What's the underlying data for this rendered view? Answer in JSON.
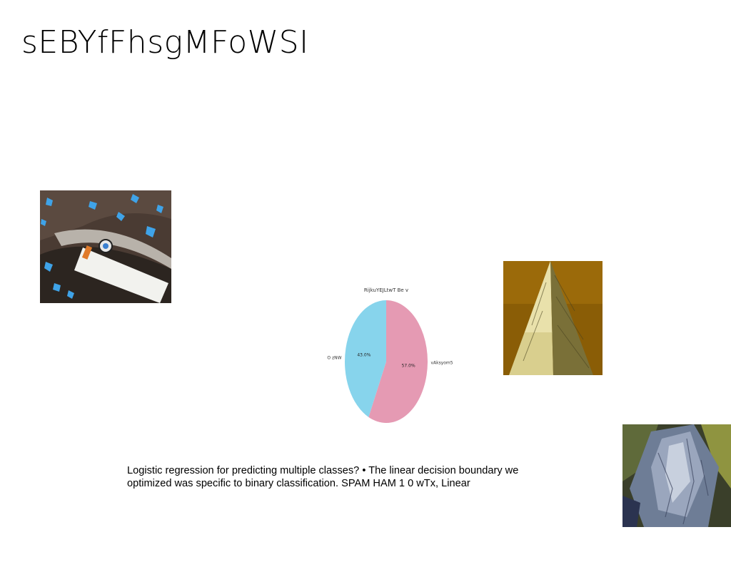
{
  "slide": {
    "title": "sEBYfFhsgMFoWSI",
    "body_text": "Logistic regression for predicting multiple classes? • The linear decision boundary we optimized was specific to binary classification. SPAM HAM 1 0 wTx, Linear"
  },
  "chart_data": {
    "type": "pie",
    "title": "RijkuYEJLtwT Be v",
    "labels": [
      "vAksyom5",
      "O zNW"
    ],
    "values": [
      57.0,
      43.0
    ],
    "value_labels": [
      "57.0%",
      "43.0%"
    ],
    "colors": [
      "#e59ab3",
      "#87d4ec"
    ],
    "start_angle_deg": 90,
    "direction": "clockwise",
    "legend": "none"
  }
}
